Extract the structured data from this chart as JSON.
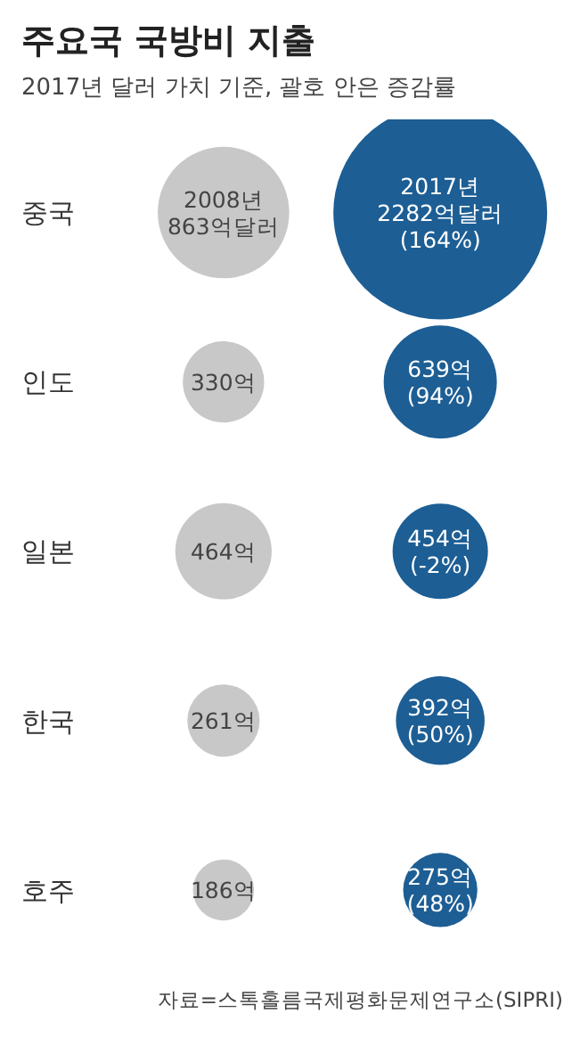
{
  "chart_data": {
    "type": "other",
    "title": "주요국 국방비 지출",
    "subtitle": "2017년 달러 가치 기준, 괄호 안은 증감률",
    "categories": [
      "중국",
      "인도",
      "일본",
      "한국",
      "호주"
    ],
    "series": [
      {
        "color": "#c8c8c8",
        "values": [
          863,
          330,
          464,
          261,
          186
        ],
        "value_labels": [
          "2008년\n863억달러",
          "330억",
          "464억",
          "261억",
          "186억"
        ]
      },
      {
        "color": "#1d5e94",
        "values": [
          2282,
          639,
          454,
          392,
          275
        ],
        "value_labels": [
          "2017년\n2282억달러\n(164%)",
          "639억\n(94%)",
          "454억\n(-2%)",
          "392억\n(50%)",
          "275억\n(48%)"
        ]
      }
    ],
    "annotations": [
      "자료=스톡홀름국제평화문제연구소(SIPRI)"
    ]
  }
}
